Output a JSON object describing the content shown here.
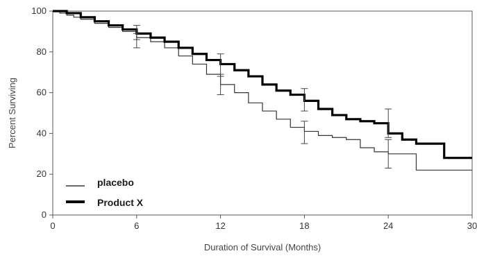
{
  "chart_data": {
    "type": "line",
    "xlabel": "Duration of Survival (Months)",
    "ylabel": "Percent Surviving",
    "xlim": [
      0,
      30
    ],
    "ylim": [
      0,
      100
    ],
    "x_ticks": [
      "0",
      "6",
      "12",
      "18",
      "24",
      "30"
    ],
    "y_ticks": [
      "0",
      "20",
      "40",
      "60",
      "80",
      "100"
    ],
    "grid": false,
    "legend_position": "bottom-left",
    "series": [
      {
        "name": "placebo",
        "style": "step",
        "line_weight": "thin",
        "color": "#333333",
        "x": [
          0,
          0.5,
          1,
          1.5,
          2,
          3,
          4,
          5,
          6,
          7,
          8,
          9,
          10,
          11,
          12,
          13,
          14,
          15,
          16,
          17,
          18,
          19,
          20,
          21,
          22,
          23,
          24,
          25,
          26,
          27,
          28,
          29,
          30
        ],
        "y": [
          100,
          99,
          98,
          97,
          96,
          94,
          92,
          90,
          87,
          85,
          82,
          78,
          74,
          69,
          64,
          60,
          55,
          51,
          47,
          43,
          41,
          39,
          38,
          37,
          33,
          31,
          30,
          30,
          22,
          22,
          22,
          22,
          22
        ]
      },
      {
        "name": "Product X",
        "style": "step",
        "line_weight": "thick",
        "color": "#000000",
        "x": [
          0,
          1,
          2,
          3,
          4,
          5,
          6,
          7,
          8,
          9,
          10,
          11,
          12,
          13,
          14,
          15,
          16,
          17,
          18,
          19,
          20,
          21,
          22,
          23,
          24,
          25,
          26,
          27,
          28,
          29,
          30
        ],
        "y": [
          100,
          99,
          97,
          95,
          93,
          91,
          89,
          87,
          85,
          82,
          79,
          76,
          74,
          71,
          68,
          64,
          61,
          59,
          56,
          52,
          49,
          47,
          46,
          45,
          40,
          37,
          35,
          35,
          28,
          28,
          28
        ]
      }
    ],
    "error_bars": [
      {
        "series": "placebo",
        "x": 6,
        "low": 82,
        "high": 89
      },
      {
        "series": "Product X",
        "x": 6,
        "low": 86,
        "high": 93
      },
      {
        "series": "placebo",
        "x": 12,
        "low": 59,
        "high": 68
      },
      {
        "series": "Product X",
        "x": 12,
        "low": 69,
        "high": 79
      },
      {
        "series": "placebo",
        "x": 18,
        "low": 35,
        "high": 46
      },
      {
        "series": "Product X",
        "x": 18,
        "low": 51,
        "high": 62
      },
      {
        "series": "placebo",
        "x": 24,
        "low": 23,
        "high": 37
      },
      {
        "series": "Product X",
        "x": 24,
        "low": 38,
        "high": 52
      }
    ]
  }
}
